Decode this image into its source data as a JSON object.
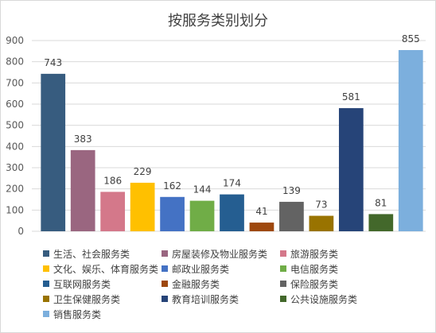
{
  "chart_data": {
    "type": "bar",
    "title": "按服务类别划分",
    "ylim": [
      0,
      900
    ],
    "yticks": [
      0,
      100,
      200,
      300,
      400,
      500,
      600,
      700,
      800,
      900
    ],
    "grid": true,
    "legend_position": "bottom",
    "series": [
      {
        "name": "生活、社会服务类",
        "value": 743,
        "color": "#375C7F"
      },
      {
        "name": "房屋装修及物业服务类",
        "value": 383,
        "color": "#9A6680"
      },
      {
        "name": "旅游服务类",
        "value": 186,
        "color": "#D4788A"
      },
      {
        "name": "文化、娱乐、体育服务类",
        "value": 229,
        "color": "#FFC000"
      },
      {
        "name": "邮政业服务类",
        "value": 162,
        "color": "#4472C4"
      },
      {
        "name": "电信服务类",
        "value": 144,
        "color": "#70AD47"
      },
      {
        "name": "互联网服务类",
        "value": 174,
        "color": "#255E91"
      },
      {
        "name": "金融服务类",
        "value": 41,
        "color": "#9E480E"
      },
      {
        "name": "保险服务类",
        "value": 139,
        "color": "#636363"
      },
      {
        "name": "卫生保健服务类",
        "value": 73,
        "color": "#997300"
      },
      {
        "name": "教育培训服务类",
        "value": 581,
        "color": "#264478"
      },
      {
        "name": "公共设施服务类",
        "value": 81,
        "color": "#43682B"
      },
      {
        "name": "销售服务类",
        "value": 855,
        "color": "#7CAFDD"
      }
    ]
  }
}
